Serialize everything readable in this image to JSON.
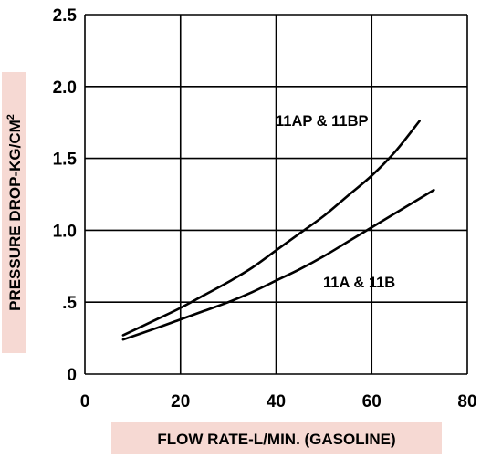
{
  "chart_data": {
    "type": "line",
    "title": "",
    "xlabel": "FLOW RATE-L/MIN. (GASOLINE)",
    "ylabel_main": "PRESSURE DROP-KG/CM",
    "ylabel_sup": "2",
    "xlim": [
      0,
      80
    ],
    "ylim": [
      0,
      2.5
    ],
    "grid": true,
    "label_background": "#f6d9d3",
    "x_ticks": [
      {
        "value": 0,
        "label": "0"
      },
      {
        "value": 20,
        "label": "20"
      },
      {
        "value": 40,
        "label": "40"
      },
      {
        "value": 60,
        "label": "60"
      },
      {
        "value": 80,
        "label": "80"
      }
    ],
    "y_ticks": [
      {
        "value": 0,
        "label": "0"
      },
      {
        "value": 0.5,
        "label": ".5"
      },
      {
        "value": 1.0,
        "label": "1.0"
      },
      {
        "value": 1.5,
        "label": "1.5"
      },
      {
        "value": 2.0,
        "label": "2.0"
      },
      {
        "value": 2.5,
        "label": "2.5"
      }
    ],
    "series": [
      {
        "name": "11AP & 11BP",
        "x": [
          8,
          15,
          20,
          25,
          30,
          35,
          40,
          45,
          50,
          55,
          60,
          65,
          70
        ],
        "y": [
          0.27,
          0.38,
          0.46,
          0.55,
          0.64,
          0.74,
          0.86,
          0.98,
          1.1,
          1.24,
          1.38,
          1.55,
          1.76
        ]
      },
      {
        "name": "11A & 11B",
        "x": [
          8,
          15,
          20,
          25,
          30,
          35,
          40,
          45,
          50,
          55,
          60,
          65,
          70,
          73
        ],
        "y": [
          0.24,
          0.32,
          0.38,
          0.44,
          0.5,
          0.57,
          0.65,
          0.73,
          0.82,
          0.92,
          1.02,
          1.12,
          1.22,
          1.28
        ]
      }
    ]
  }
}
